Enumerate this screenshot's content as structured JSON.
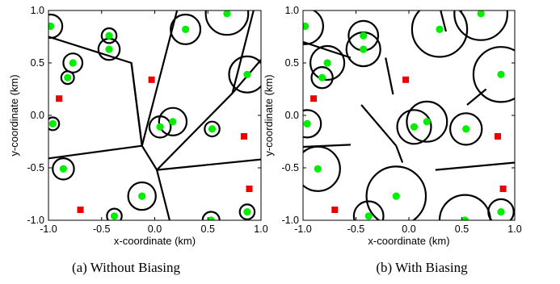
{
  "colors": {
    "user": "#00ee00",
    "bs": "#ee0000",
    "line": "#000000"
  },
  "chart_data": [
    {
      "type": "scatter",
      "caption": "(a)  Without Biasing",
      "xlabel": "x-coordinate (km)",
      "ylabel": "y-coordinate (km)",
      "xlim": [
        -1,
        1
      ],
      "ylim": [
        -1,
        1
      ],
      "xticks": [
        "-1.0",
        "-0.5",
        "0.0",
        "0.5",
        "1.0"
      ],
      "yticks": [
        "-1.0",
        "-0.5",
        "0.0",
        "0.5",
        "1.0"
      ],
      "grid": false,
      "macro_bs": [
        [
          -0.03,
          0.34
        ],
        [
          0.84,
          -0.2
        ],
        [
          -0.9,
          0.16
        ],
        [
          0.89,
          -0.7
        ],
        [
          -0.7,
          -0.9
        ]
      ],
      "small_cells": [
        {
          "x": -0.43,
          "y": 0.76,
          "r": 0.07
        },
        {
          "x": -0.43,
          "y": 0.63,
          "r": 0.1
        },
        {
          "x": -0.77,
          "y": 0.5,
          "r": 0.09
        },
        {
          "x": -0.82,
          "y": 0.36,
          "r": 0.06
        },
        {
          "x": -0.98,
          "y": 0.85,
          "r": 0.11
        },
        {
          "x": 0.29,
          "y": 0.82,
          "r": 0.14
        },
        {
          "x": 0.68,
          "y": 0.97,
          "r": 0.2
        },
        {
          "x": 0.87,
          "y": 0.39,
          "r": 0.17
        },
        {
          "x": 0.05,
          "y": -0.11,
          "r": 0.1
        },
        {
          "x": 0.17,
          "y": -0.06,
          "r": 0.13
        },
        {
          "x": 0.54,
          "y": -0.13,
          "r": 0.07
        },
        {
          "x": -0.96,
          "y": -0.08,
          "r": 0.06
        },
        {
          "x": -0.86,
          "y": -0.51,
          "r": 0.1
        },
        {
          "x": -0.12,
          "y": -0.77,
          "r": 0.13
        },
        {
          "x": -0.38,
          "y": -0.96,
          "r": 0.07
        },
        {
          "x": 0.53,
          "y": -1.0,
          "r": 0.08
        },
        {
          "x": 0.87,
          "y": -0.92,
          "r": 0.07
        }
      ],
      "boundaries": [
        [
          [
            -1.0,
            0.75
          ],
          [
            -0.22,
            0.5
          ],
          [
            -0.12,
            -0.29
          ],
          [
            0.21,
            1.0
          ]
        ],
        [
          [
            -0.22,
            0.5
          ],
          [
            -0.12,
            -0.29
          ]
        ],
        [
          [
            -1.0,
            -0.41
          ],
          [
            -0.12,
            -0.29
          ],
          [
            0.02,
            -0.52
          ],
          [
            0.14,
            -1.0
          ]
        ],
        [
          [
            0.02,
            -0.52
          ],
          [
            0.73,
            0.21
          ],
          [
            1.0,
            0.53
          ]
        ],
        [
          [
            0.73,
            0.21
          ],
          [
            0.93,
            1.0
          ]
        ],
        [
          [
            0.02,
            -0.52
          ],
          [
            1.0,
            -0.42
          ]
        ]
      ]
    },
    {
      "type": "scatter",
      "caption": "(b)  With Biasing",
      "xlabel": "x-coordinate (km)",
      "ylabel": "y-coordinate (km)",
      "xlim": [
        -1,
        1
      ],
      "ylim": [
        -1,
        1
      ],
      "xticks": [
        "-1.0",
        "-0.5",
        "0.0",
        "0.5",
        "1.0"
      ],
      "yticks": [
        "-1.0",
        "-0.5",
        "0.0",
        "0.5",
        "1.0"
      ],
      "grid": false,
      "macro_bs": [
        [
          -0.03,
          0.34
        ],
        [
          0.84,
          -0.2
        ],
        [
          -0.9,
          0.16
        ],
        [
          0.89,
          -0.7
        ],
        [
          -0.7,
          -0.9
        ]
      ],
      "small_cells": [
        {
          "x": -0.43,
          "y": 0.76,
          "r": 0.14
        },
        {
          "x": -0.43,
          "y": 0.63,
          "r": 0.16
        },
        {
          "x": -0.77,
          "y": 0.5,
          "r": 0.16
        },
        {
          "x": -0.82,
          "y": 0.36,
          "r": 0.1
        },
        {
          "x": -0.98,
          "y": 0.85,
          "r": 0.17
        },
        {
          "x": 0.29,
          "y": 0.82,
          "r": 0.26
        },
        {
          "x": 0.68,
          "y": 0.97,
          "r": 0.25
        },
        {
          "x": 0.87,
          "y": 0.39,
          "r": 0.26
        },
        {
          "x": 0.05,
          "y": -0.11,
          "r": 0.16
        },
        {
          "x": 0.17,
          "y": -0.06,
          "r": 0.19
        },
        {
          "x": 0.54,
          "y": -0.13,
          "r": 0.15
        },
        {
          "x": -0.96,
          "y": -0.08,
          "r": 0.13
        },
        {
          "x": -0.86,
          "y": -0.51,
          "r": 0.21
        },
        {
          "x": -0.12,
          "y": -0.77,
          "r": 0.28
        },
        {
          "x": -0.38,
          "y": -0.96,
          "r": 0.14
        },
        {
          "x": 0.53,
          "y": -1.0,
          "r": 0.24
        },
        {
          "x": 0.87,
          "y": -0.92,
          "r": 0.12
        }
      ],
      "boundaries": [
        [
          [
            -1.0,
            0.7
          ],
          [
            -0.55,
            0.55
          ]
        ],
        [
          [
            -0.22,
            0.55
          ],
          [
            -0.15,
            0.2
          ]
        ],
        [
          [
            -0.45,
            0.1
          ],
          [
            -0.12,
            -0.29
          ]
        ],
        [
          [
            -1.0,
            -0.3
          ],
          [
            -0.55,
            -0.28
          ]
        ],
        [
          [
            -0.12,
            -0.29
          ],
          [
            -0.06,
            -0.45
          ]
        ],
        [
          [
            0.25,
            -0.52
          ],
          [
            1.0,
            -0.45
          ]
        ],
        [
          [
            0.55,
            0.1
          ],
          [
            0.73,
            0.25
          ]
        ],
        [
          [
            0.3,
            1.0
          ],
          [
            0.35,
            0.8
          ]
        ]
      ]
    }
  ]
}
